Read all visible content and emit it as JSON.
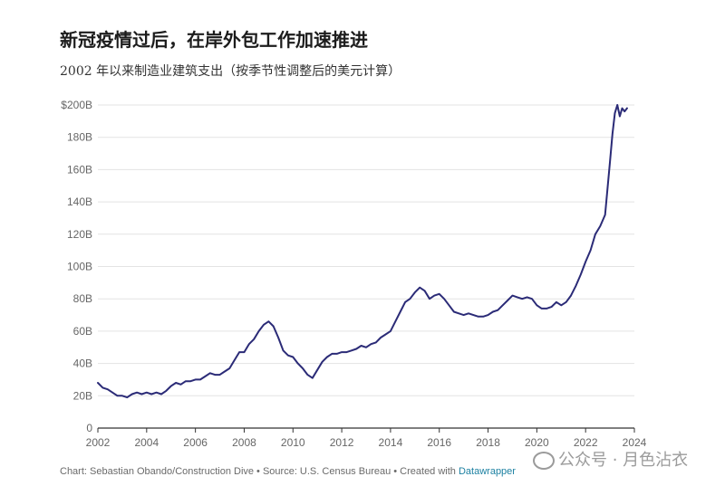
{
  "title": "新冠疫情过后，在岸外包工作加速推进",
  "subtitle": "2002 年以来制造业建筑支出（按季节性调整后的美元计算）",
  "footer": {
    "credit": "Chart: Sebastian Obando/Construction Dive • Source: U.S. Census Bureau • Created with ",
    "tool": "Datawrapper"
  },
  "watermark": {
    "text": "公众号 · 月色沾衣"
  },
  "colors": {
    "line": "#2b2b77",
    "grid": "#e3e3e3",
    "axis": "#333333",
    "tick_text": "#666666"
  },
  "chart_data": {
    "type": "line",
    "title": "",
    "xlabel": "",
    "ylabel": "",
    "xlim": [
      2002,
      2024
    ],
    "ylim": [
      0,
      200
    ],
    "grid": true,
    "y_ticks": [
      {
        "value": 0,
        "label": "0"
      },
      {
        "value": 20,
        "label": "20B"
      },
      {
        "value": 40,
        "label": "40B"
      },
      {
        "value": 60,
        "label": "60B"
      },
      {
        "value": 80,
        "label": "80B"
      },
      {
        "value": 100,
        "label": "100B"
      },
      {
        "value": 120,
        "label": "120B"
      },
      {
        "value": 140,
        "label": "140B"
      },
      {
        "value": 160,
        "label": "160B"
      },
      {
        "value": 180,
        "label": "180B"
      },
      {
        "value": 200,
        "label": "$200B"
      }
    ],
    "x_ticks": [
      {
        "value": 2002,
        "label": "2002"
      },
      {
        "value": 2004,
        "label": "2004"
      },
      {
        "value": 2006,
        "label": "2006"
      },
      {
        "value": 2008,
        "label": "2008"
      },
      {
        "value": 2010,
        "label": "2010"
      },
      {
        "value": 2012,
        "label": "2012"
      },
      {
        "value": 2014,
        "label": "2014"
      },
      {
        "value": 2016,
        "label": "2016"
      },
      {
        "value": 2018,
        "label": "2018"
      },
      {
        "value": 2020,
        "label": "2020"
      },
      {
        "value": 2022,
        "label": "2022"
      },
      {
        "value": 2024,
        "label": "2024"
      }
    ],
    "series": [
      {
        "x": [
          2002.0,
          2002.2,
          2002.4,
          2002.6,
          2002.8,
          2003.0,
          2003.2,
          2003.4,
          2003.6,
          2003.8,
          2004.0,
          2004.2,
          2004.4,
          2004.6,
          2004.8,
          2005.0,
          2005.2,
          2005.4,
          2005.6,
          2005.8,
          2006.0,
          2006.2,
          2006.4,
          2006.6,
          2006.8,
          2007.0,
          2007.2,
          2007.4,
          2007.6,
          2007.8,
          2008.0,
          2008.2,
          2008.4,
          2008.6,
          2008.8,
          2009.0,
          2009.2,
          2009.4,
          2009.6,
          2009.8,
          2010.0,
          2010.2,
          2010.4,
          2010.6,
          2010.8,
          2011.0,
          2011.2,
          2011.4,
          2011.6,
          2011.8,
          2012.0,
          2012.2,
          2012.4,
          2012.6,
          2012.8,
          2013.0,
          2013.2,
          2013.4,
          2013.6,
          2013.8,
          2014.0,
          2014.2,
          2014.4,
          2014.6,
          2014.8,
          2015.0,
          2015.2,
          2015.4,
          2015.6,
          2015.8,
          2016.0,
          2016.2,
          2016.4,
          2016.6,
          2016.8,
          2017.0,
          2017.2,
          2017.4,
          2017.6,
          2017.8,
          2018.0,
          2018.2,
          2018.4,
          2018.6,
          2018.8,
          2019.0,
          2019.2,
          2019.4,
          2019.6,
          2019.8,
          2020.0,
          2020.2,
          2020.4,
          2020.6,
          2020.8,
          2021.0,
          2021.2,
          2021.4,
          2021.6,
          2021.8,
          2022.0,
          2022.2,
          2022.4,
          2022.6,
          2022.8,
          2023.0,
          2023.1,
          2023.2,
          2023.3,
          2023.4,
          2023.5,
          2023.6,
          2023.7
        ],
        "y": [
          28,
          25,
          24,
          22,
          20,
          20,
          19,
          21,
          22,
          21,
          22,
          21,
          22,
          21,
          23,
          26,
          28,
          27,
          29,
          29,
          30,
          30,
          32,
          34,
          33,
          33,
          35,
          37,
          42,
          47,
          47,
          52,
          55,
          60,
          64,
          66,
          63,
          56,
          48,
          45,
          44,
          40,
          37,
          33,
          31,
          36,
          41,
          44,
          46,
          46,
          47,
          47,
          48,
          49,
          51,
          50,
          52,
          53,
          56,
          58,
          60,
          66,
          72,
          78,
          80,
          84,
          87,
          85,
          80,
          82,
          83,
          80,
          76,
          72,
          71,
          70,
          71,
          70,
          69,
          69,
          70,
          72,
          73,
          76,
          79,
          82,
          81,
          80,
          81,
          80,
          76,
          74,
          74,
          75,
          78,
          76,
          78,
          82,
          88,
          95,
          103,
          110,
          120,
          125,
          132,
          165,
          182,
          195,
          200,
          193,
          198,
          196,
          198
        ]
      }
    ]
  }
}
